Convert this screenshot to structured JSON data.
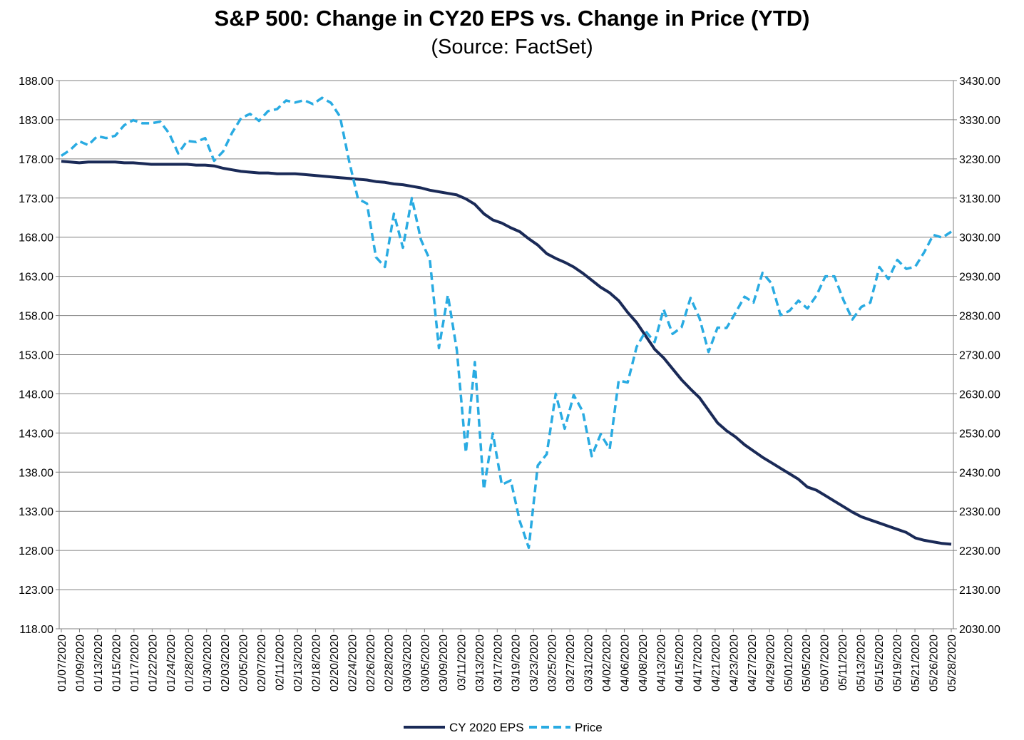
{
  "chart_data": {
    "type": "line",
    "title": "S&P 500: Change in CY20 EPS vs. Change in Price (YTD)",
    "subtitle": "(Source: FactSet)",
    "grid": true,
    "legend_position": "bottom-center",
    "colors": {
      "CY 2020 EPS": "#1a2a57",
      "Price": "#29abe2"
    },
    "left_axis": {
      "ylim": [
        118,
        188
      ],
      "ticks": [
        "118.00",
        "123.00",
        "128.00",
        "133.00",
        "138.00",
        "143.00",
        "148.00",
        "153.00",
        "158.00",
        "163.00",
        "168.00",
        "173.00",
        "178.00",
        "183.00",
        "188.00"
      ]
    },
    "right_axis": {
      "ylim": [
        2030,
        3430
      ],
      "ticks": [
        "2030.00",
        "2130.00",
        "2230.00",
        "2330.00",
        "2430.00",
        "2530.00",
        "2630.00",
        "2730.00",
        "2830.00",
        "2930.00",
        "3030.00",
        "3130.00",
        "3230.00",
        "3330.00",
        "3430.00"
      ]
    },
    "x_tick_labels": [
      "01/07/2020",
      "01/09/2020",
      "01/13/2020",
      "01/15/2020",
      "01/17/2020",
      "01/22/2020",
      "01/24/2020",
      "01/28/2020",
      "01/30/2020",
      "02/03/2020",
      "02/05/2020",
      "02/07/2020",
      "02/11/2020",
      "02/13/2020",
      "02/18/2020",
      "02/20/2020",
      "02/24/2020",
      "02/26/2020",
      "02/28/2020",
      "03/03/2020",
      "03/05/2020",
      "03/09/2020",
      "03/11/2020",
      "03/13/2020",
      "03/17/2020",
      "03/19/2020",
      "03/23/2020",
      "03/25/2020",
      "03/27/2020",
      "03/31/2020",
      "04/02/2020",
      "04/06/2020",
      "04/08/2020",
      "04/13/2020",
      "04/15/2020",
      "04/17/2020",
      "04/21/2020",
      "04/23/2020",
      "04/27/2020",
      "04/29/2020",
      "05/01/2020",
      "05/05/2020",
      "05/07/2020",
      "05/11/2020",
      "05/13/2020",
      "05/15/2020",
      "05/19/2020",
      "05/21/2020",
      "05/26/2020",
      "05/28/2020"
    ],
    "x": [
      "01/07/2020",
      "01/08/2020",
      "01/09/2020",
      "01/10/2020",
      "01/13/2020",
      "01/14/2020",
      "01/15/2020",
      "01/16/2020",
      "01/17/2020",
      "01/21/2020",
      "01/22/2020",
      "01/23/2020",
      "01/24/2020",
      "01/27/2020",
      "01/28/2020",
      "01/29/2020",
      "01/30/2020",
      "01/31/2020",
      "02/03/2020",
      "02/04/2020",
      "02/05/2020",
      "02/06/2020",
      "02/07/2020",
      "02/10/2020",
      "02/11/2020",
      "02/12/2020",
      "02/13/2020",
      "02/14/2020",
      "02/18/2020",
      "02/19/2020",
      "02/20/2020",
      "02/21/2020",
      "02/24/2020",
      "02/25/2020",
      "02/26/2020",
      "02/27/2020",
      "02/28/2020",
      "03/02/2020",
      "03/03/2020",
      "03/04/2020",
      "03/05/2020",
      "03/06/2020",
      "03/09/2020",
      "03/10/2020",
      "03/11/2020",
      "03/12/2020",
      "03/13/2020",
      "03/16/2020",
      "03/17/2020",
      "03/18/2020",
      "03/19/2020",
      "03/20/2020",
      "03/23/2020",
      "03/24/2020",
      "03/25/2020",
      "03/26/2020",
      "03/27/2020",
      "03/30/2020",
      "03/31/2020",
      "04/01/2020",
      "04/02/2020",
      "04/03/2020",
      "04/06/2020",
      "04/07/2020",
      "04/08/2020",
      "04/09/2020",
      "04/13/2020",
      "04/14/2020",
      "04/15/2020",
      "04/16/2020",
      "04/17/2020",
      "04/20/2020",
      "04/21/2020",
      "04/22/2020",
      "04/23/2020",
      "04/24/2020",
      "04/27/2020",
      "04/28/2020",
      "04/29/2020",
      "04/30/2020",
      "05/01/2020",
      "05/04/2020",
      "05/05/2020",
      "05/06/2020",
      "05/07/2020",
      "05/08/2020",
      "05/11/2020",
      "05/12/2020",
      "05/13/2020",
      "05/14/2020",
      "05/15/2020",
      "05/18/2020",
      "05/19/2020",
      "05/20/2020",
      "05/21/2020",
      "05/22/2020",
      "05/26/2020",
      "05/27/2020",
      "05/28/2020",
      "05/29/2020"
    ],
    "series": [
      {
        "name": "CY 2020 EPS",
        "axis": "left",
        "style": "solid",
        "values": [
          177.7,
          177.6,
          177.5,
          177.6,
          177.6,
          177.6,
          177.6,
          177.5,
          177.5,
          177.4,
          177.3,
          177.3,
          177.3,
          177.3,
          177.3,
          177.2,
          177.2,
          177.1,
          176.8,
          176.6,
          176.4,
          176.3,
          176.2,
          176.2,
          176.1,
          176.1,
          176.1,
          176.0,
          175.9,
          175.8,
          175.7,
          175.6,
          175.5,
          175.4,
          175.3,
          175.1,
          175.0,
          174.8,
          174.7,
          174.5,
          174.3,
          174.0,
          173.8,
          173.6,
          173.4,
          172.9,
          172.2,
          171.0,
          170.2,
          169.8,
          169.2,
          168.7,
          167.8,
          167.0,
          165.9,
          165.3,
          164.8,
          164.2,
          163.4,
          162.5,
          161.6,
          160.9,
          159.9,
          158.4,
          157.1,
          155.4,
          153.7,
          152.6,
          151.2,
          149.8,
          148.6,
          147.5,
          145.9,
          144.3,
          143.3,
          142.5,
          141.5,
          140.7,
          139.9,
          139.2,
          138.5,
          137.8,
          137.1,
          136.1,
          135.7,
          135.0,
          134.3,
          133.6,
          132.9,
          132.3,
          131.9,
          131.5,
          131.1,
          130.7,
          130.3,
          129.6,
          129.3,
          129.1,
          128.9,
          128.8
        ]
      },
      {
        "name": "Price",
        "axis": "right",
        "style": "dashed",
        "values": [
          3238,
          3253,
          3275,
          3265,
          3288,
          3283,
          3289,
          3316,
          3329,
          3321,
          3321,
          3325,
          3295,
          3244,
          3276,
          3273,
          3283,
          3225,
          3249,
          3297,
          3334,
          3345,
          3327,
          3352,
          3357,
          3379,
          3374,
          3380,
          3370,
          3386,
          3373,
          3338,
          3226,
          3128,
          3116,
          2979,
          2954,
          3090,
          3003,
          3130,
          3024,
          2972,
          2747,
          2882,
          2741,
          2480,
          2711,
          2386,
          2529,
          2398,
          2409,
          2305,
          2237,
          2447,
          2476,
          2630,
          2541,
          2627,
          2585,
          2471,
          2527,
          2489,
          2664,
          2659,
          2750,
          2790,
          2762,
          2846,
          2783,
          2800,
          2875,
          2823,
          2737,
          2799,
          2798,
          2837,
          2878,
          2863,
          2939,
          2912,
          2831,
          2842,
          2868,
          2848,
          2881,
          2930,
          2930,
          2870,
          2820,
          2852,
          2863,
          2954,
          2923,
          2972,
          2949,
          2955,
          2992,
          3036,
          3029,
          3044
        ]
      }
    ]
  }
}
